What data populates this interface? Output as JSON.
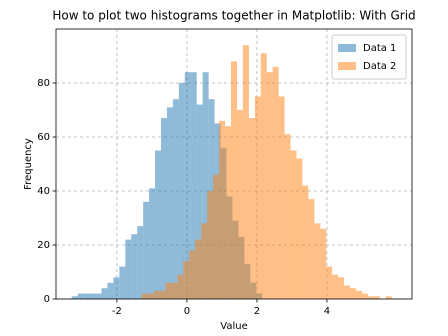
{
  "chart_data": {
    "type": "histogram",
    "title": "How to plot two histograms together in Matplotlib: With Grid",
    "xlabel": "Value",
    "ylabel": "Frequency",
    "series": [
      {
        "name": "Data 1",
        "color": "#1f77b4",
        "bins": [
          -3.29,
          -3.12,
          -2.95,
          -2.78,
          -2.61,
          -2.44,
          -2.27,
          -2.1,
          -1.93,
          -1.76,
          -1.59,
          -1.42,
          -1.25,
          -1.08,
          -0.91,
          -0.74,
          -0.57,
          -0.4,
          -0.23,
          -0.06,
          0.11,
          0.28,
          0.45,
          0.62,
          0.79,
          0.96,
          1.13,
          1.3,
          1.47,
          1.64,
          1.81,
          1.98,
          2.15
        ],
        "values": [
          1,
          2,
          2,
          2,
          2,
          4,
          6,
          8,
          12,
          22,
          24,
          27,
          36,
          41,
          55,
          67,
          71,
          74,
          80,
          84,
          84,
          72,
          84,
          74,
          65,
          56,
          38,
          29,
          23,
          13,
          6,
          2
        ]
      },
      {
        "name": "Data 2",
        "color": "#ff7f0e",
        "bins": [
          -1.29,
          -1.12,
          -0.95,
          -0.78,
          -0.61,
          -0.44,
          -0.27,
          -0.1,
          0.07,
          0.24,
          0.41,
          0.58,
          0.75,
          0.92,
          1.09,
          1.26,
          1.43,
          1.6,
          1.77,
          1.94,
          2.11,
          2.28,
          2.45,
          2.62,
          2.79,
          2.96,
          3.13,
          3.3,
          3.47,
          3.64,
          3.81,
          3.98,
          4.15,
          4.32,
          4.49,
          4.66,
          4.83,
          5.0,
          5.17,
          5.34,
          5.51,
          5.68,
          5.85
        ],
        "values": [
          2,
          2,
          3,
          3,
          6,
          6,
          9,
          14,
          18,
          22,
          28,
          40,
          46,
          66,
          64,
          88,
          70,
          94,
          67,
          75,
          91,
          84,
          86,
          75,
          61,
          55,
          52,
          42,
          37,
          28,
          26,
          12,
          9,
          8,
          5,
          4,
          3,
          2,
          1,
          1,
          0,
          1
        ]
      }
    ],
    "alpha": 0.5,
    "xlim": [
      -3.74,
      6.43
    ],
    "ylim": [
      0,
      100
    ],
    "xticks": [
      -2,
      0,
      2,
      4
    ],
    "yticks": [
      0,
      20,
      40,
      60,
      80
    ],
    "grid": true,
    "legend": "upper right"
  }
}
